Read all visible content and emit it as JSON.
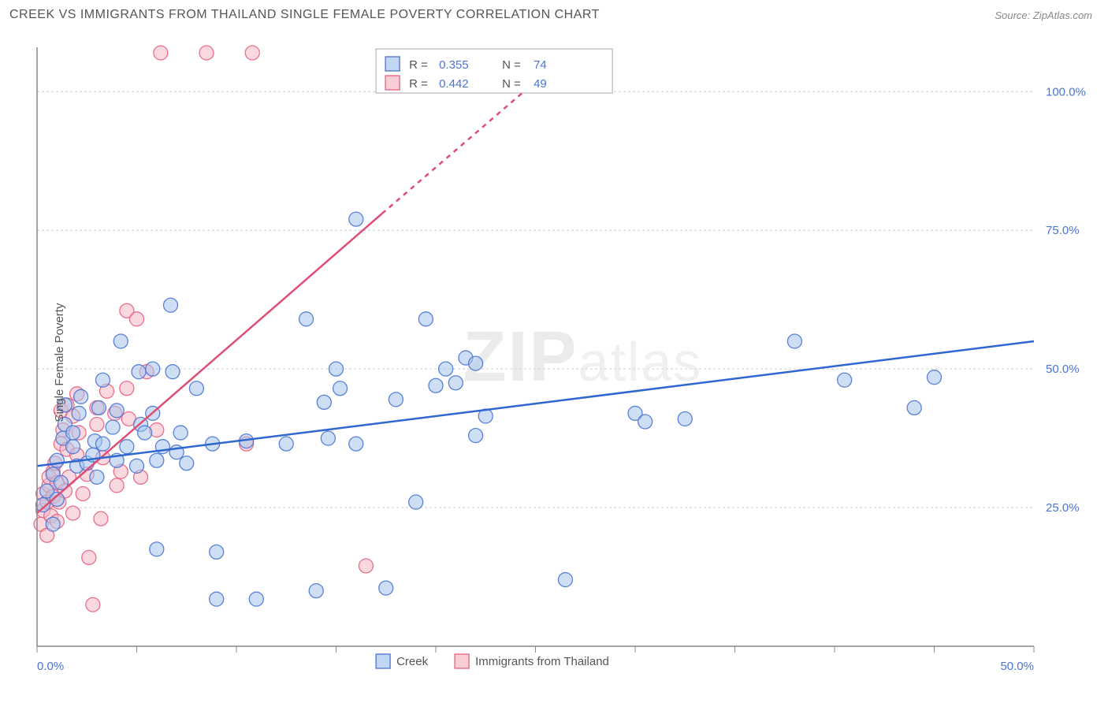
{
  "header": {
    "title": "CREEK VS IMMIGRANTS FROM THAILAND SINGLE FEMALE POVERTY CORRELATION CHART",
    "source": "Source: ZipAtlas.com"
  },
  "ylabel": "Single Female Poverty",
  "watermark": {
    "bold": "ZIP",
    "light": "atlas"
  },
  "colors": {
    "blue_fill": "#a6c4ec",
    "blue_stroke": "#4a74d4",
    "pink_fill": "#f6b8c4",
    "pink_stroke": "#e9627e",
    "blue_line": "#2f66d0",
    "pink_line": "#e04d74",
    "grid": "#cccccc",
    "axis": "#888888",
    "bg": "#ffffff",
    "text": "#555555",
    "value": "#4a74d4"
  },
  "plot": {
    "x_min": 0,
    "x_max": 50,
    "y_min": 0,
    "y_max": 108,
    "marker_radius": 9,
    "marker_opacity": 0.55,
    "line_width": 2.5,
    "x_ticks_major": [
      0,
      50
    ],
    "x_ticks_minor": [
      5,
      10,
      15,
      20,
      25,
      30,
      35,
      40,
      45
    ],
    "y_ticks": [
      25,
      50,
      75,
      100
    ],
    "x_tick_labels": {
      "0": "0.0%",
      "50": "50.0%"
    },
    "y_tick_labels": {
      "25": "25.0%",
      "50": "50.0%",
      "75": "75.0%",
      "100": "100.0%"
    }
  },
  "legend_top": {
    "series": [
      {
        "swatch": "blue",
        "R": "0.355",
        "N": "74"
      },
      {
        "swatch": "pink",
        "R": "0.442",
        "N": "49"
      }
    ],
    "R_label": "R =",
    "N_label": "N ="
  },
  "legend_bottom": {
    "items": [
      {
        "swatch": "blue",
        "label": "Creek"
      },
      {
        "swatch": "pink",
        "label": "Immigrants from Thailand"
      }
    ]
  },
  "series_blue": {
    "name": "Creek",
    "trend": {
      "x1": 0,
      "y1": 32.5,
      "x2": 50,
      "y2": 55
    },
    "points": [
      [
        0.3,
        25.5
      ],
      [
        0.5,
        28
      ],
      [
        0.8,
        22
      ],
      [
        0.8,
        31
      ],
      [
        1.0,
        33.5
      ],
      [
        1.0,
        26.5
      ],
      [
        1.2,
        29.5
      ],
      [
        1.3,
        37.5
      ],
      [
        1.4,
        40
      ],
      [
        1.4,
        43.5
      ],
      [
        1.8,
        36
      ],
      [
        1.8,
        38.5
      ],
      [
        2.0,
        32.5
      ],
      [
        2.1,
        42
      ],
      [
        2.2,
        45
      ],
      [
        2.5,
        33
      ],
      [
        2.8,
        34.5
      ],
      [
        2.9,
        37
      ],
      [
        3.0,
        30.5
      ],
      [
        3.1,
        43
      ],
      [
        3.3,
        36.5
      ],
      [
        3.3,
        48
      ],
      [
        3.8,
        39.5
      ],
      [
        4.0,
        33.5
      ],
      [
        4.0,
        42.5
      ],
      [
        4.2,
        55
      ],
      [
        4.5,
        36
      ],
      [
        5.0,
        32.5
      ],
      [
        5.1,
        49.5
      ],
      [
        5.2,
        40
      ],
      [
        5.4,
        38.5
      ],
      [
        5.8,
        50
      ],
      [
        5.8,
        42
      ],
      [
        6.0,
        33.5
      ],
      [
        6.0,
        17.5
      ],
      [
        6.3,
        36
      ],
      [
        6.7,
        61.5
      ],
      [
        6.8,
        49.5
      ],
      [
        7.0,
        35
      ],
      [
        7.2,
        38.5
      ],
      [
        7.5,
        33
      ],
      [
        8.0,
        46.5
      ],
      [
        8.8,
        36.5
      ],
      [
        9.0,
        8.5
      ],
      [
        9.0,
        17
      ],
      [
        10.5,
        37
      ],
      [
        11.0,
        8.5
      ],
      [
        12.5,
        36.5
      ],
      [
        13.5,
        59
      ],
      [
        14.0,
        10
      ],
      [
        14.4,
        44
      ],
      [
        14.6,
        37.5
      ],
      [
        15.0,
        50
      ],
      [
        15.2,
        46.5
      ],
      [
        16.0,
        77
      ],
      [
        16.0,
        36.5
      ],
      [
        17.5,
        10.5
      ],
      [
        18.0,
        44.5
      ],
      [
        19.0,
        26
      ],
      [
        19.5,
        59
      ],
      [
        20.0,
        47
      ],
      [
        20.5,
        50
      ],
      [
        21.0,
        47.5
      ],
      [
        21.5,
        52
      ],
      [
        22.0,
        38
      ],
      [
        22.0,
        51
      ],
      [
        22.5,
        41.5
      ],
      [
        26.5,
        12
      ],
      [
        30.0,
        42
      ],
      [
        30.5,
        40.5
      ],
      [
        32.5,
        41
      ],
      [
        38.0,
        55
      ],
      [
        40.5,
        48
      ],
      [
        44.0,
        43
      ],
      [
        45.0,
        48.5
      ]
    ]
  },
  "series_pink": {
    "name": "Immigrants from Thailand",
    "trend": {
      "x1": 0,
      "y1": 24,
      "x2": 17.3,
      "y2": 78
    },
    "trend_dashed": {
      "x1": 17.3,
      "y1": 78,
      "x2": 27,
      "y2": 108
    },
    "points": [
      [
        0.2,
        22
      ],
      [
        0.3,
        24.5
      ],
      [
        0.3,
        27.5
      ],
      [
        0.5,
        20
      ],
      [
        0.5,
        26
      ],
      [
        0.6,
        29
      ],
      [
        0.6,
        30.5
      ],
      [
        0.7,
        23.5
      ],
      [
        0.8,
        27
      ],
      [
        0.8,
        31.5
      ],
      [
        0.9,
        33
      ],
      [
        1.0,
        22.5
      ],
      [
        1.0,
        29.5
      ],
      [
        1.1,
        26
      ],
      [
        1.2,
        36.5
      ],
      [
        1.2,
        42.5
      ],
      [
        1.3,
        39
      ],
      [
        1.4,
        28
      ],
      [
        1.5,
        35.5
      ],
      [
        1.5,
        43.5
      ],
      [
        1.6,
        30.5
      ],
      [
        1.8,
        24
      ],
      [
        1.8,
        41.5
      ],
      [
        2.0,
        34.5
      ],
      [
        2.0,
        45.5
      ],
      [
        2.1,
        38.5
      ],
      [
        2.3,
        27.5
      ],
      [
        2.5,
        31
      ],
      [
        2.6,
        16
      ],
      [
        2.8,
        7.5
      ],
      [
        3.0,
        40
      ],
      [
        3.0,
        43
      ],
      [
        3.2,
        23
      ],
      [
        3.3,
        34
      ],
      [
        3.5,
        46
      ],
      [
        3.9,
        42
      ],
      [
        4.0,
        29
      ],
      [
        4.2,
        31.5
      ],
      [
        4.5,
        46.5
      ],
      [
        4.5,
        60.5
      ],
      [
        4.6,
        41
      ],
      [
        5.0,
        59
      ],
      [
        5.2,
        30.5
      ],
      [
        5.5,
        49.5
      ],
      [
        6.0,
        39
      ],
      [
        6.2,
        107
      ],
      [
        8.5,
        107
      ],
      [
        10.5,
        36.5
      ],
      [
        10.8,
        107
      ],
      [
        16.5,
        14.5
      ]
    ]
  }
}
